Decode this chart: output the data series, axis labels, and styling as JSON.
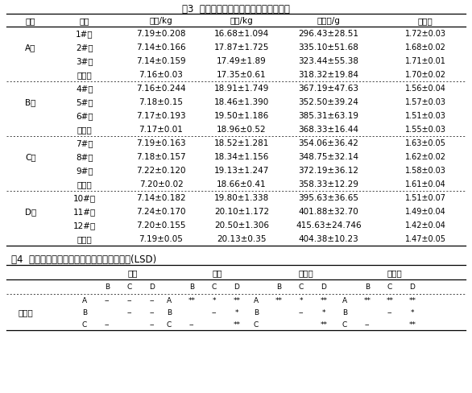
{
  "title3": "表3  不同断奶混群模式对生产性能的影响",
  "title4": "表4  不同断奶模式对生产性能的影响多重比较(LSD)",
  "headers3": [
    "组别",
    "重复",
    "始重/kg",
    "末重/kg",
    "日增重/g",
    "料肉比"
  ],
  "groups": [
    {
      "name": "A组",
      "rows": [
        [
          "1#栏",
          "7.19±0.208",
          "16.68±1.094",
          "296.43±28.51",
          "1.72±0.03"
        ],
        [
          "2#栏",
          "7.14±0.166",
          "17.87±1.725",
          "335.10±51.68",
          "1.68±0.02"
        ],
        [
          "3#栏",
          "7.14±0.159",
          "17.49±1.89",
          "323.44±55.38",
          "1.71±0.01"
        ],
        [
          "平均值",
          "7.16±0.03",
          "17.35±0.61",
          "318.32±19.84",
          "1.70±0.02"
        ]
      ]
    },
    {
      "name": "B组",
      "rows": [
        [
          "4#栏",
          "7.16±0.244",
          "18.91±1.749",
          "367.19±47.63",
          "1.56±0.04"
        ],
        [
          "5#栏",
          "7.18±0.15",
          "18.46±1.390",
          "352.50±39.24",
          "1.57±0.03"
        ],
        [
          "6#栏",
          "7.17±0.193",
          "19.50±1.186",
          "385.31±63.19",
          "1.51±0.03"
        ],
        [
          "平均值",
          "7.17±0.01",
          "18.96±0.52",
          "368.33±16.44",
          "1.55±0.03"
        ]
      ]
    },
    {
      "name": "C组",
      "rows": [
        [
          "7#栏",
          "7.19±0.163",
          "18.52±1.281",
          "354.06±36.42",
          "1.63±0.05"
        ],
        [
          "8#栏",
          "7.18±0.157",
          "18.34±1.156",
          "348.75±32.14",
          "1.62±0.02"
        ],
        [
          "9#栏",
          "7.22±0.120",
          "19.13±1.247",
          "372.19±36.12",
          "1.58±0.03"
        ],
        [
          "平均值",
          "7.20±0.02",
          "18.66±0.41",
          "358.33±12.29",
          "1.61±0.04"
        ]
      ]
    },
    {
      "name": "D组",
      "rows": [
        [
          "10#栏",
          "7.14±0.182",
          "19.80±1.338",
          "395.63±36.65",
          "1.51±0.07"
        ],
        [
          "11#栏",
          "7.24±0.170",
          "20.10±1.172",
          "401.88±32.70",
          "1.49±0.04"
        ],
        [
          "12#栏",
          "7.20±0.155",
          "20.50±1.306",
          "415.63±24.746",
          "1.42±0.04"
        ],
        [
          "平均值",
          "7.19±0.05",
          "20.13±0.35",
          "404.38±10.23",
          "1.47±0.05"
        ]
      ]
    }
  ],
  "t4_sec_labels": [
    "始重",
    "末重",
    "日增重",
    "料重比"
  ],
  "t4_rows": [
    [
      "A",
      "--",
      "--",
      "--",
      "A",
      "**",
      "*",
      "**",
      "A",
      "**",
      "*",
      "**",
      "A",
      "**",
      "**",
      "**"
    ],
    [
      "B",
      "",
      "--",
      "--",
      "B",
      "",
      "--",
      "*",
      "B",
      "",
      "--",
      "*",
      "B",
      "",
      "--",
      "*"
    ],
    [
      "C",
      "--",
      "",
      "--",
      "C",
      "--",
      "",
      "**",
      "C",
      "",
      "",
      "**",
      "C",
      "--",
      "",
      "**"
    ]
  ],
  "t4_subhdr": [
    "B",
    "C",
    "D"
  ],
  "t4_label": "显著性",
  "bg_color": "#ffffff",
  "text_color": "#000000",
  "font_size": 7.5,
  "title_font_size": 8.5,
  "lw_heavy": 0.9,
  "lw_light": 0.5
}
